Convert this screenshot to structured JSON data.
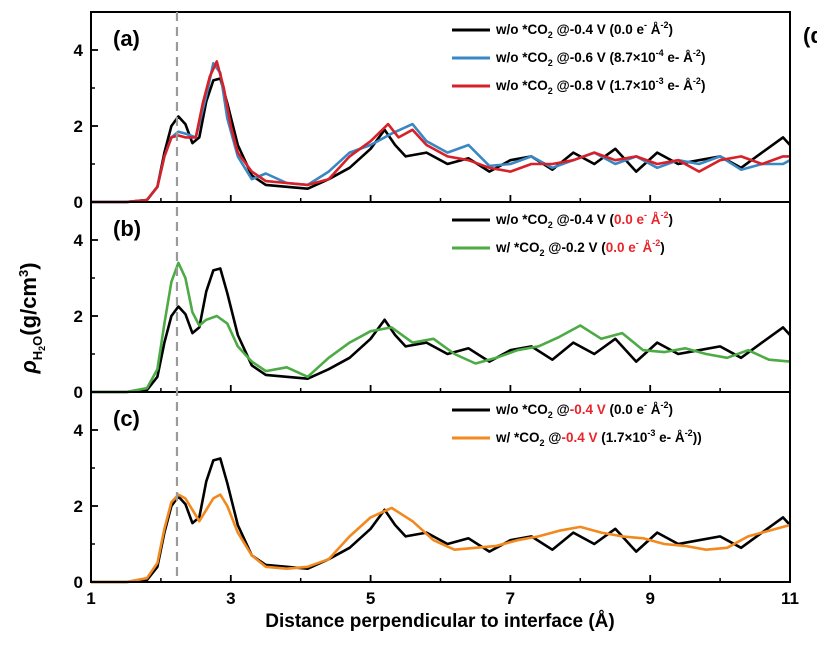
{
  "chart_data": {
    "type": "line",
    "shared_xlabel": "Distance perpendicular to interface (Å)",
    "shared_ylabel": "ρH2O(g/cm3)",
    "xlim": [
      1,
      11
    ],
    "xticks": [
      "1",
      "3",
      "5",
      "7",
      "9",
      "11"
    ],
    "reference_line_x": 2.23,
    "panels": [
      {
        "label": "(a)",
        "ylim": [
          0,
          5
        ],
        "yticks": [
          "0",
          "2",
          "4"
        ],
        "series": [
          {
            "name": "w/o *CO2 @-0.4 V (0.0 e- Å-2)",
            "color": "#000000",
            "x": [
              1.0,
              1.5,
              1.8,
              1.95,
              2.05,
              2.15,
              2.25,
              2.35,
              2.45,
              2.55,
              2.65,
              2.75,
              2.85,
              2.95,
              3.1,
              3.3,
              3.5,
              3.8,
              4.1,
              4.4,
              4.7,
              5.0,
              5.2,
              5.35,
              5.5,
              5.8,
              6.1,
              6.4,
              6.7,
              7.0,
              7.3,
              7.6,
              7.9,
              8.2,
              8.5,
              8.8,
              9.1,
              9.4,
              9.7,
              10.0,
              10.3,
              10.6,
              10.9,
              11.0
            ],
            "y": [
              0,
              0,
              0.05,
              0.4,
              1.3,
              2.0,
              2.25,
              2.05,
              1.55,
              1.7,
              2.65,
              3.2,
              3.25,
              2.6,
              1.5,
              0.7,
              0.45,
              0.4,
              0.35,
              0.6,
              0.9,
              1.4,
              1.9,
              1.5,
              1.2,
              1.3,
              1.0,
              1.15,
              0.8,
              1.1,
              1.2,
              0.85,
              1.3,
              1.0,
              1.4,
              0.8,
              1.3,
              1.0,
              1.1,
              1.2,
              0.9,
              1.3,
              1.7,
              1.5
            ]
          },
          {
            "name": "w/o *CO2 @-0.6 V (8.7×10-4 e- Å-2)",
            "color": "#3a87c4",
            "x": [
              1.0,
              1.5,
              1.8,
              1.95,
              2.05,
              2.15,
              2.25,
              2.35,
              2.5,
              2.65,
              2.75,
              2.85,
              2.95,
              3.1,
              3.3,
              3.5,
              3.8,
              4.1,
              4.4,
              4.7,
              5.0,
              5.3,
              5.6,
              5.8,
              6.1,
              6.4,
              6.7,
              7.0,
              7.3,
              7.6,
              7.9,
              8.2,
              8.5,
              8.8,
              9.1,
              9.4,
              9.7,
              10.0,
              10.3,
              10.6,
              10.9,
              11.0
            ],
            "y": [
              0,
              0,
              0.05,
              0.4,
              1.2,
              1.7,
              1.85,
              1.8,
              1.7,
              2.8,
              3.65,
              3.4,
              2.2,
              1.2,
              0.6,
              0.75,
              0.5,
              0.45,
              0.8,
              1.3,
              1.5,
              1.8,
              2.05,
              1.6,
              1.3,
              1.5,
              0.95,
              1.0,
              1.2,
              0.9,
              1.1,
              1.3,
              1.0,
              1.2,
              0.9,
              1.1,
              1.0,
              1.2,
              0.85,
              1.0,
              1.0,
              1.1
            ]
          },
          {
            "name": "w/o *CO2 @-0.8 V (1.7×10-3 e- Å-2)",
            "color": "#d62128",
            "x": [
              1.0,
              1.5,
              1.8,
              1.95,
              2.05,
              2.15,
              2.25,
              2.35,
              2.5,
              2.6,
              2.7,
              2.8,
              2.9,
              3.0,
              3.1,
              3.3,
              3.5,
              3.8,
              4.1,
              4.4,
              4.7,
              5.0,
              5.25,
              5.4,
              5.6,
              5.8,
              6.1,
              6.4,
              6.7,
              7.0,
              7.3,
              7.6,
              7.9,
              8.2,
              8.5,
              8.8,
              9.1,
              9.4,
              9.7,
              10.0,
              10.3,
              10.6,
              10.9,
              11.0
            ],
            "y": [
              0,
              0,
              0.05,
              0.4,
              1.2,
              1.7,
              1.75,
              1.7,
              1.7,
              2.6,
              3.3,
              3.7,
              3.0,
              2.0,
              1.3,
              0.8,
              0.55,
              0.5,
              0.45,
              0.6,
              1.2,
              1.6,
              2.05,
              1.7,
              1.9,
              1.5,
              1.2,
              1.1,
              0.9,
              0.8,
              1.0,
              1.0,
              1.1,
              1.3,
              1.1,
              1.2,
              1.0,
              1.1,
              0.8,
              1.1,
              1.2,
              1.0,
              1.2,
              1.2
            ]
          }
        ],
        "legend": [
          {
            "text": "w/o *CO",
            "sub": "2",
            "rest": " @-0.4 V (0.0 e",
            "sup1": "-",
            "mid": " Å",
            "sup2": "-2",
            "end": ")"
          },
          {
            "text": "w/o *CO",
            "sub": "2",
            "rest": " @-0.6 V (8.7×10",
            "sup1": "-4",
            "mid": " e- Å",
            "sup2": "-2",
            "end": ")"
          },
          {
            "text": "w/o *CO",
            "sub": "2",
            "rest": " @-0.8 V (1.7×10",
            "sup1": "-3",
            "mid": " e- Å",
            "sup2": "-2",
            "end": ")"
          }
        ]
      },
      {
        "label": "(b)",
        "ylim": [
          0,
          5
        ],
        "yticks": [
          "0",
          "2",
          "4"
        ],
        "series": [
          {
            "name": "w/o *CO2 @-0.4 V (0.0 e- Å-2)",
            "color": "#000000",
            "x": [
              1.0,
              1.5,
              1.8,
              1.95,
              2.05,
              2.15,
              2.25,
              2.35,
              2.45,
              2.55,
              2.65,
              2.75,
              2.85,
              2.95,
              3.1,
              3.3,
              3.5,
              3.8,
              4.1,
              4.4,
              4.7,
              5.0,
              5.2,
              5.35,
              5.5,
              5.8,
              6.1,
              6.4,
              6.7,
              7.0,
              7.3,
              7.6,
              7.9,
              8.2,
              8.5,
              8.8,
              9.1,
              9.4,
              9.7,
              10.0,
              10.3,
              10.6,
              10.9,
              11.0
            ],
            "y": [
              0,
              0,
              0.05,
              0.4,
              1.3,
              2.0,
              2.25,
              2.05,
              1.55,
              1.7,
              2.65,
              3.2,
              3.25,
              2.6,
              1.5,
              0.7,
              0.45,
              0.4,
              0.35,
              0.6,
              0.9,
              1.4,
              1.9,
              1.5,
              1.2,
              1.3,
              1.0,
              1.15,
              0.8,
              1.1,
              1.2,
              0.85,
              1.3,
              1.0,
              1.4,
              0.8,
              1.3,
              1.0,
              1.1,
              1.2,
              0.9,
              1.3,
              1.7,
              1.5
            ]
          },
          {
            "name": "w/ *CO2 @-0.2 V (0.0 e- Å-2)",
            "color": "#4cab45",
            "x": [
              1.0,
              1.5,
              1.8,
              1.95,
              2.05,
              2.15,
              2.25,
              2.35,
              2.45,
              2.55,
              2.65,
              2.8,
              2.95,
              3.1,
              3.3,
              3.5,
              3.8,
              4.1,
              4.4,
              4.7,
              5.0,
              5.3,
              5.6,
              5.9,
              6.2,
              6.5,
              6.8,
              7.1,
              7.4,
              7.7,
              8.0,
              8.3,
              8.6,
              8.9,
              9.2,
              9.5,
              9.8,
              10.1,
              10.4,
              10.7,
              11.0
            ],
            "y": [
              0,
              0,
              0.1,
              0.6,
              1.8,
              2.9,
              3.4,
              3.0,
              2.1,
              1.75,
              1.9,
              2.0,
              1.8,
              1.2,
              0.8,
              0.55,
              0.65,
              0.4,
              0.9,
              1.3,
              1.6,
              1.7,
              1.3,
              1.4,
              1.0,
              0.75,
              0.9,
              1.1,
              1.2,
              1.45,
              1.75,
              1.4,
              1.55,
              1.1,
              1.05,
              1.15,
              1.0,
              0.9,
              1.1,
              0.85,
              0.8
            ]
          }
        ],
        "legend": [
          {
            "text": "w/o *CO",
            "sub": "2",
            "rest": " @-0.4 V (",
            "red": "0.0 e",
            "redsup": "-",
            "red2": " Å",
            "redsup2": "-2",
            "end": ")"
          },
          {
            "text": "w/   *CO",
            "sub": "2",
            "rest": " @-0.2 V (",
            "red": "0.0 e",
            "redsup": "-",
            "red2": " Å",
            "redsup2": "-2",
            "end": ")"
          }
        ]
      },
      {
        "label": "(c)",
        "ylim": [
          0,
          5
        ],
        "yticks": [
          "0",
          "2",
          "4"
        ],
        "series": [
          {
            "name": "w/o *CO2 @-0.4 V (0.0 e- Å-2)",
            "color": "#000000",
            "x": [
              1.0,
              1.5,
              1.8,
              1.95,
              2.05,
              2.15,
              2.25,
              2.35,
              2.45,
              2.55,
              2.65,
              2.75,
              2.85,
              2.95,
              3.1,
              3.3,
              3.5,
              3.8,
              4.1,
              4.4,
              4.7,
              5.0,
              5.2,
              5.35,
              5.5,
              5.8,
              6.1,
              6.4,
              6.7,
              7.0,
              7.3,
              7.6,
              7.9,
              8.2,
              8.5,
              8.8,
              9.1,
              9.4,
              9.7,
              10.0,
              10.3,
              10.6,
              10.9,
              11.0
            ],
            "y": [
              0,
              0,
              0.05,
              0.4,
              1.3,
              2.0,
              2.25,
              2.05,
              1.55,
              1.7,
              2.65,
              3.2,
              3.25,
              2.6,
              1.5,
              0.7,
              0.45,
              0.4,
              0.35,
              0.6,
              0.9,
              1.4,
              1.9,
              1.5,
              1.2,
              1.3,
              1.0,
              1.15,
              0.8,
              1.1,
              1.2,
              0.85,
              1.3,
              1.0,
              1.4,
              0.8,
              1.3,
              1.0,
              1.1,
              1.2,
              0.9,
              1.3,
              1.7,
              1.5
            ]
          },
          {
            "name": "w/ *CO2 @-0.4 V (1.7×10-3 e- Å-2)",
            "color": "#f2891e",
            "x": [
              1.0,
              1.5,
              1.8,
              1.95,
              2.05,
              2.15,
              2.25,
              2.35,
              2.45,
              2.55,
              2.65,
              2.75,
              2.85,
              2.95,
              3.1,
              3.3,
              3.5,
              3.8,
              4.1,
              4.4,
              4.7,
              5.0,
              5.3,
              5.6,
              5.9,
              6.2,
              6.5,
              6.8,
              7.1,
              7.4,
              7.7,
              8.0,
              8.3,
              8.6,
              8.9,
              9.2,
              9.5,
              9.8,
              10.1,
              10.4,
              10.7,
              11.0
            ],
            "y": [
              0,
              0,
              0.1,
              0.5,
              1.4,
              2.1,
              2.3,
              2.2,
              1.9,
              1.6,
              1.9,
              2.2,
              2.3,
              2.0,
              1.3,
              0.7,
              0.4,
              0.35,
              0.4,
              0.6,
              1.2,
              1.7,
              1.95,
              1.6,
              1.1,
              0.85,
              0.9,
              0.95,
              1.1,
              1.2,
              1.35,
              1.45,
              1.3,
              1.2,
              1.15,
              1.0,
              0.95,
              0.85,
              0.9,
              1.2,
              1.35,
              1.5
            ]
          }
        ],
        "legend": [
          {
            "text": "w/o *CO",
            "sub": "2",
            "rest": " @",
            "red": "-0.4 V",
            "rest2": " (0.0 e",
            "sup1": "-",
            "mid": " Å",
            "sup2": "-2",
            "end": ")"
          },
          {
            "text": "w/   *CO",
            "sub": "2",
            "rest": " @",
            "red": "-0.4 V",
            "rest2": " (1.7×10",
            "sup1": "-3",
            "mid": " e- Å",
            "sup2": "-2",
            "end": "))"
          }
        ]
      }
    ],
    "edge_label": "(d"
  }
}
